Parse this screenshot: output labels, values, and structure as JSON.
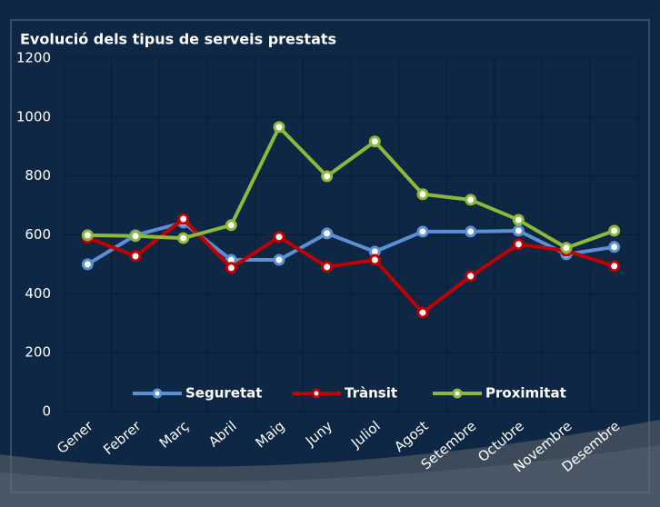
{
  "chart_data": {
    "type": "line",
    "title": "Evolució dels tipus de serveis prestats",
    "categories": [
      "Gener",
      "Febrer",
      "Març",
      "Abril",
      "Maig",
      "Juny",
      "Juliol",
      "Agost",
      "Setembre",
      "Octubre",
      "Novembre",
      "Desembre"
    ],
    "series": [
      {
        "name": "Seguretat",
        "color": "#5b8fd6",
        "values": [
          500,
          599,
          642,
          515,
          515,
          605,
          543,
          611,
          611,
          614,
          534,
          559
        ]
      },
      {
        "name": "Trànsit",
        "color": "#c00000",
        "values": [
          590,
          528,
          654,
          488,
          593,
          491,
          515,
          336,
          460,
          568,
          546,
          494
        ]
      },
      {
        "name": "Proximitat",
        "color": "#8db83c",
        "values": [
          599,
          596,
          589,
          633,
          966,
          799,
          917,
          738,
          719,
          651,
          556,
          614
        ]
      }
    ],
    "ylim": [
      0,
      1200
    ],
    "yticks": [
      0,
      200,
      400,
      600,
      800,
      1000,
      1200
    ],
    "grid": true,
    "legend": "bottom"
  }
}
